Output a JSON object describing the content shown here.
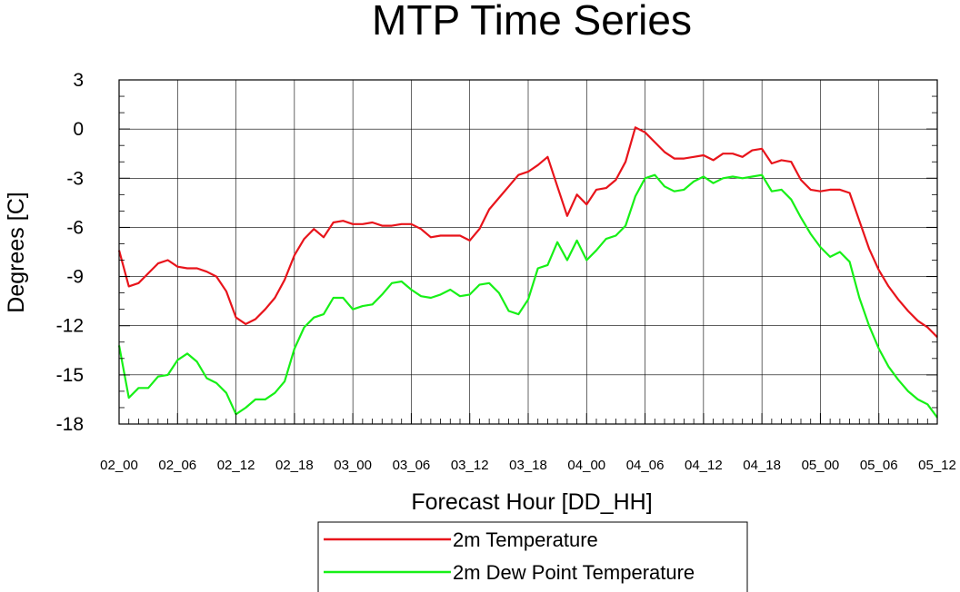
{
  "chart_data": {
    "type": "line",
    "title": "MTP Time Series",
    "xlabel": "Forecast Hour [DD_HH]",
    "ylabel": "Degrees [C]",
    "ylim": [
      -18,
      3
    ],
    "yticks": [
      "3",
      "0",
      "-3",
      "-6",
      "-9",
      "-12",
      "-15",
      "-18"
    ],
    "ytick_values": [
      3,
      0,
      -3,
      -6,
      -9,
      -12,
      -15,
      -18
    ],
    "xlim": [
      0,
      84
    ],
    "xticks": [
      "02_00",
      "02_06",
      "02_12",
      "02_18",
      "03_00",
      "03_06",
      "03_12",
      "03_18",
      "04_00",
      "04_06",
      "04_12",
      "04_18",
      "05_00",
      "05_06",
      "05_12"
    ],
    "xtick_hours": [
      0,
      6,
      12,
      18,
      24,
      30,
      36,
      42,
      48,
      54,
      60,
      66,
      72,
      78,
      84
    ],
    "grid": true,
    "legend_position": "bottom-center",
    "x": [
      0,
      1,
      2,
      3,
      4,
      5,
      6,
      7,
      8,
      9,
      10,
      11,
      12,
      13,
      14,
      15,
      16,
      17,
      18,
      19,
      20,
      21,
      22,
      23,
      24,
      25,
      26,
      27,
      28,
      29,
      30,
      31,
      32,
      33,
      34,
      35,
      36,
      37,
      38,
      39,
      40,
      41,
      42,
      43,
      44,
      45,
      46,
      47,
      48,
      49,
      50,
      51,
      52,
      53,
      54,
      55,
      56,
      57,
      58,
      59,
      60,
      61,
      62,
      63,
      64,
      65,
      66,
      67,
      68,
      69,
      70,
      71,
      72,
      73,
      74,
      75,
      76,
      77,
      78,
      79,
      80,
      81,
      82,
      83,
      84
    ],
    "series": [
      {
        "name": "2m Temperature",
        "color": "#e8141b",
        "values": [
          -7.4,
          -9.6,
          -9.4,
          -8.8,
          -8.2,
          -8.0,
          -8.4,
          -8.5,
          -8.5,
          -8.7,
          -9.0,
          -9.9,
          -11.5,
          -11.9,
          -11.6,
          -11.0,
          -10.3,
          -9.2,
          -7.7,
          -6.7,
          -6.1,
          -6.6,
          -5.7,
          -5.6,
          -5.8,
          -5.8,
          -5.7,
          -5.9,
          -5.9,
          -5.8,
          -5.8,
          -6.1,
          -6.6,
          -6.5,
          -6.5,
          -6.5,
          -6.8,
          -6.1,
          -4.9,
          -4.2,
          -3.5,
          -2.8,
          -2.6,
          -2.2,
          -1.7,
          -3.5,
          -5.3,
          -4.0,
          -4.6,
          -3.7,
          -3.6,
          -3.1,
          -2.0,
          0.1,
          -0.2,
          -0.8,
          -1.4,
          -1.8,
          -1.8,
          -1.7,
          -1.6,
          -1.9,
          -1.5,
          -1.5,
          -1.7,
          -1.3,
          -1.2,
          -2.1,
          -1.9,
          -2.0,
          -3.1,
          -3.7,
          -3.8,
          -3.7,
          -3.7,
          -3.9,
          -5.6,
          -7.3,
          -8.6,
          -9.6,
          -10.4,
          -11.1,
          -11.7,
          -12.1,
          -12.7
        ]
      },
      {
        "name": "2m Dew Point Temperature",
        "color": "#17f017",
        "values": [
          -13.2,
          -16.4,
          -15.8,
          -15.8,
          -15.1,
          -15.0,
          -14.1,
          -13.7,
          -14.2,
          -15.2,
          -15.5,
          -16.1,
          -17.4,
          -17.0,
          -16.5,
          -16.5,
          -16.1,
          -15.4,
          -13.4,
          -12.1,
          -11.5,
          -11.3,
          -10.3,
          -10.3,
          -11.0,
          -10.8,
          -10.7,
          -10.1,
          -9.4,
          -9.3,
          -9.8,
          -10.2,
          -10.3,
          -10.1,
          -9.8,
          -10.2,
          -10.1,
          -9.5,
          -9.4,
          -10.0,
          -11.1,
          -11.3,
          -10.4,
          -8.5,
          -8.3,
          -6.9,
          -8.0,
          -6.8,
          -8.0,
          -7.4,
          -6.7,
          -6.5,
          -5.9,
          -4.1,
          -3.0,
          -2.8,
          -3.5,
          -3.8,
          -3.7,
          -3.2,
          -2.9,
          -3.3,
          -3.0,
          -2.9,
          -3.0,
          -2.9,
          -2.8,
          -3.8,
          -3.7,
          -4.3,
          -5.4,
          -6.4,
          -7.2,
          -7.8,
          -7.5,
          -8.1,
          -10.3,
          -12.0,
          -13.4,
          -14.5,
          -15.3,
          -16.0,
          -16.5,
          -16.8,
          -17.6
        ]
      }
    ]
  }
}
